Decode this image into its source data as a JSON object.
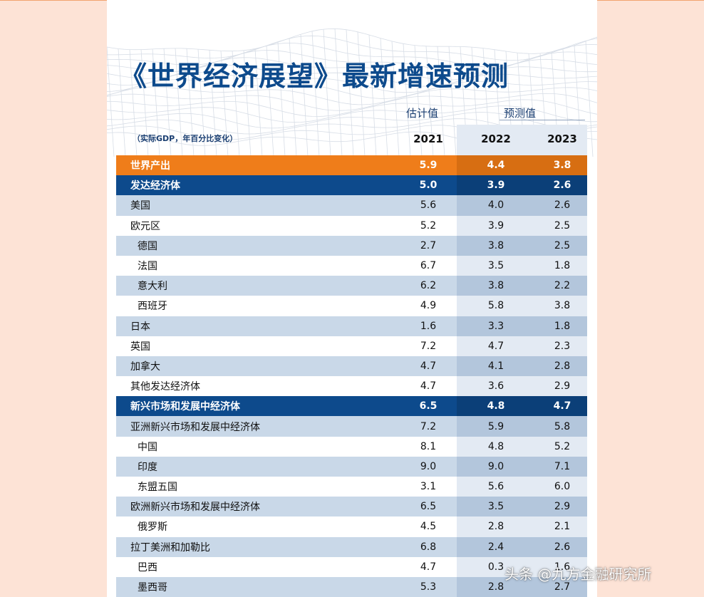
{
  "title": "《世界经济展望》最新增速预测",
  "subtitle": "（实际GDP，年百分比变化）",
  "header": {
    "estimate_label": "估计值",
    "projection_label": "预测值",
    "years": [
      "2021",
      "2022",
      "2023"
    ]
  },
  "colors": {
    "world_row": "#ef7d1a",
    "group_row": "#0d4a8c",
    "stripe": "#c9d8e8",
    "background": "#fde3d6"
  },
  "rows": [
    {
      "name": "世界产出",
      "v2021": "5.9",
      "v2022": "4.4",
      "v2023": "3.8",
      "type": "world"
    },
    {
      "name": "发达经济体",
      "v2021": "5.0",
      "v2022": "3.9",
      "v2023": "2.6",
      "type": "group"
    },
    {
      "name": "美国",
      "v2021": "5.6",
      "v2022": "4.0",
      "v2023": "2.6",
      "type": "odd"
    },
    {
      "name": "欧元区",
      "v2021": "5.2",
      "v2022": "3.9",
      "v2023": "2.5",
      "type": "even"
    },
    {
      "name": "德国",
      "v2021": "2.7",
      "v2022": "3.8",
      "v2023": "2.5",
      "type": "odd",
      "indent": true
    },
    {
      "name": "法国",
      "v2021": "6.7",
      "v2022": "3.5",
      "v2023": "1.8",
      "type": "even",
      "indent": true
    },
    {
      "name": "意大利",
      "v2021": "6.2",
      "v2022": "3.8",
      "v2023": "2.2",
      "type": "odd",
      "indent": true
    },
    {
      "name": "西班牙",
      "v2021": "4.9",
      "v2022": "5.8",
      "v2023": "3.8",
      "type": "even",
      "indent": true
    },
    {
      "name": "日本",
      "v2021": "1.6",
      "v2022": "3.3",
      "v2023": "1.8",
      "type": "odd"
    },
    {
      "name": "英国",
      "v2021": "7.2",
      "v2022": "4.7",
      "v2023": "2.3",
      "type": "even"
    },
    {
      "name": "加拿大",
      "v2021": "4.7",
      "v2022": "4.1",
      "v2023": "2.8",
      "type": "odd"
    },
    {
      "name": "其他发达经济体",
      "v2021": "4.7",
      "v2022": "3.6",
      "v2023": "2.9",
      "type": "even"
    },
    {
      "name": "新兴市场和发展中经济体",
      "v2021": "6.5",
      "v2022": "4.8",
      "v2023": "4.7",
      "type": "group"
    },
    {
      "name": "亚洲新兴市场和发展中经济体",
      "v2021": "7.2",
      "v2022": "5.9",
      "v2023": "5.8",
      "type": "odd"
    },
    {
      "name": "中国",
      "v2021": "8.1",
      "v2022": "4.8",
      "v2023": "5.2",
      "type": "even",
      "indent": true
    },
    {
      "name": "印度",
      "v2021": "9.0",
      "v2022": "9.0",
      "v2023": "7.1",
      "type": "odd",
      "indent": true
    },
    {
      "name": "东盟五国",
      "v2021": "3.1",
      "v2022": "5.6",
      "v2023": "6.0",
      "type": "even",
      "indent": true
    },
    {
      "name": "欧洲新兴市场和发展中经济体",
      "v2021": "6.5",
      "v2022": "3.5",
      "v2023": "2.9",
      "type": "odd"
    },
    {
      "name": "俄罗斯",
      "v2021": "4.5",
      "v2022": "2.8",
      "v2023": "2.1",
      "type": "even",
      "indent": true
    },
    {
      "name": "拉丁美洲和加勒比",
      "v2021": "6.8",
      "v2022": "2.4",
      "v2023": "2.6",
      "type": "odd"
    },
    {
      "name": "巴西",
      "v2021": "4.7",
      "v2022": "0.3",
      "v2023": "1.6",
      "type": "even",
      "indent": true
    },
    {
      "name": "墨西哥",
      "v2021": "5.3",
      "v2022": "2.8",
      "v2023": "2.7",
      "type": "odd",
      "indent": true
    }
  ],
  "watermark": "头条 @九方金融研究所"
}
